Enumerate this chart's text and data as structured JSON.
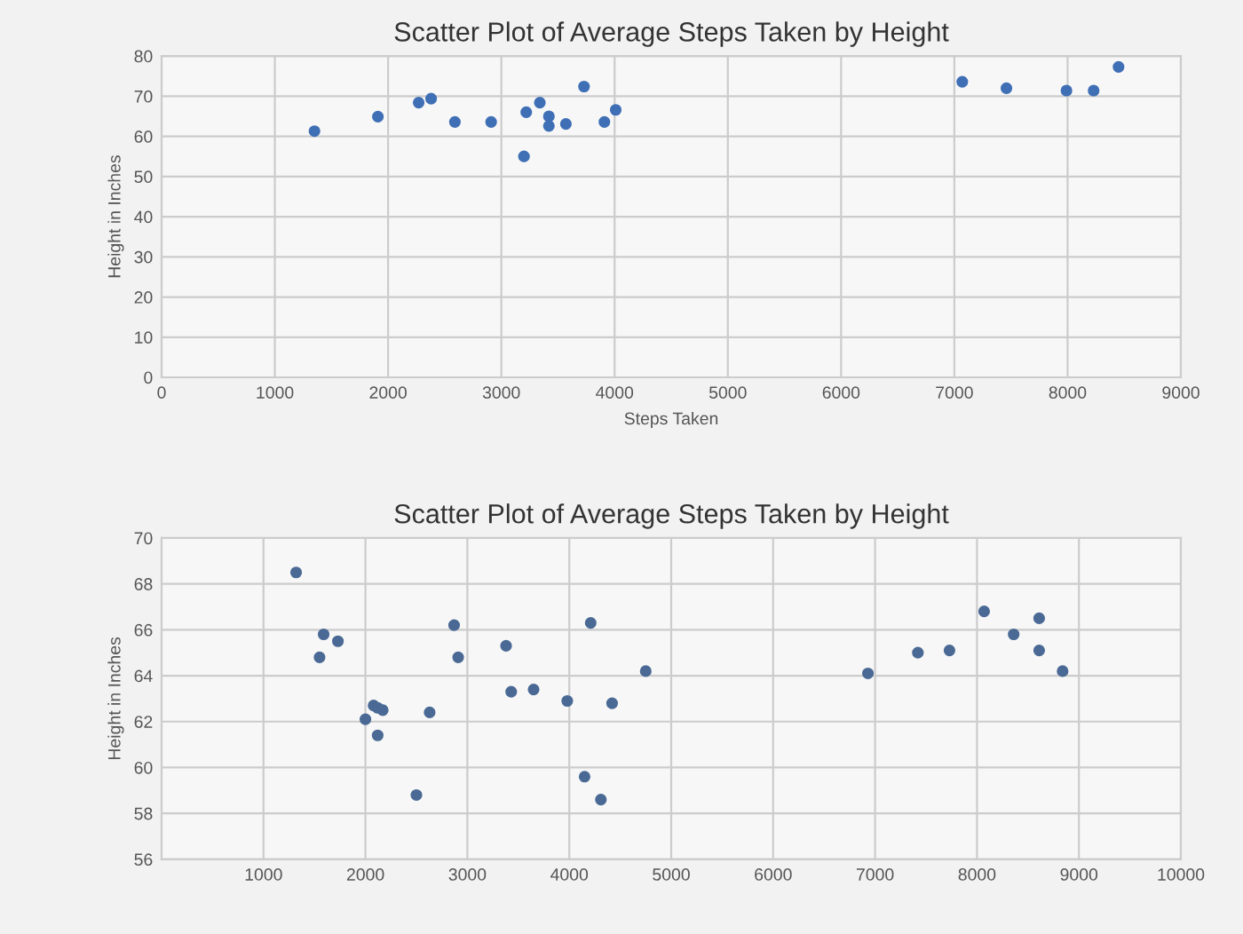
{
  "chart_data": [
    {
      "type": "scatter",
      "title": "Scatter Plot of Average Steps Taken by Height",
      "xlabel": "Steps Taken",
      "ylabel": "Height in Inches",
      "x": [
        1350,
        1910,
        2270,
        2380,
        2590,
        2910,
        3200,
        3220,
        3340,
        3420,
        3420,
        3570,
        3730,
        3910,
        4010,
        7070,
        7460,
        7990,
        8230,
        8450
      ],
      "series": [
        {
          "color": "#3f6fb5",
          "values": [
            61.3,
            64.9,
            68.4,
            69.4,
            63.6,
            63.6,
            55,
            66,
            68.4,
            65,
            62.6,
            63.1,
            72.4,
            63.6,
            66.6,
            73.6,
            72,
            71.4,
            71.4,
            77.3
          ]
        }
      ],
      "xlim": [
        0,
        9000
      ],
      "xticks": [
        0,
        1000,
        2000,
        3000,
        4000,
        5000,
        6000,
        7000,
        8000,
        9000
      ],
      "ylim": [
        0,
        80
      ],
      "yticks": [
        0,
        10,
        20,
        30,
        40,
        50,
        60,
        70,
        80
      ],
      "grid": true,
      "marker": "circle"
    },
    {
      "type": "scatter",
      "title": "Scatter Plot of Average Steps Taken by Height",
      "ylabel": "Height in Inches",
      "x": [
        1320,
        1590,
        1730,
        1550,
        2080,
        2120,
        2170,
        2000,
        2120,
        2630,
        2500,
        2870,
        2910,
        3380,
        3430,
        3650,
        3980,
        4210,
        4420,
        4150,
        4310,
        4750,
        6930,
        7420,
        7730,
        8070,
        8360,
        8610,
        8610,
        8840
      ],
      "series": [
        {
          "color": "#4a6a95",
          "values": [
            68.5,
            65.8,
            65.5,
            64.8,
            62.7,
            62.6,
            62.5,
            62.1,
            61.4,
            62.4,
            58.8,
            66.2,
            64.8,
            65.3,
            63.3,
            63.4,
            62.9,
            66.3,
            62.8,
            59.6,
            58.6,
            64.2,
            64.1,
            65.0,
            65.1,
            66.8,
            65.8,
            66.5,
            65.1,
            64.2
          ]
        }
      ],
      "xlim": [
        0,
        10000
      ],
      "xticks": [
        1000,
        2000,
        3000,
        4000,
        5000,
        6000,
        7000,
        8000,
        9000,
        10000
      ],
      "ylim": [
        56,
        70
      ],
      "yticks": [
        56,
        58,
        60,
        62,
        64,
        66,
        68,
        70
      ],
      "grid": true,
      "marker": "circle"
    }
  ]
}
